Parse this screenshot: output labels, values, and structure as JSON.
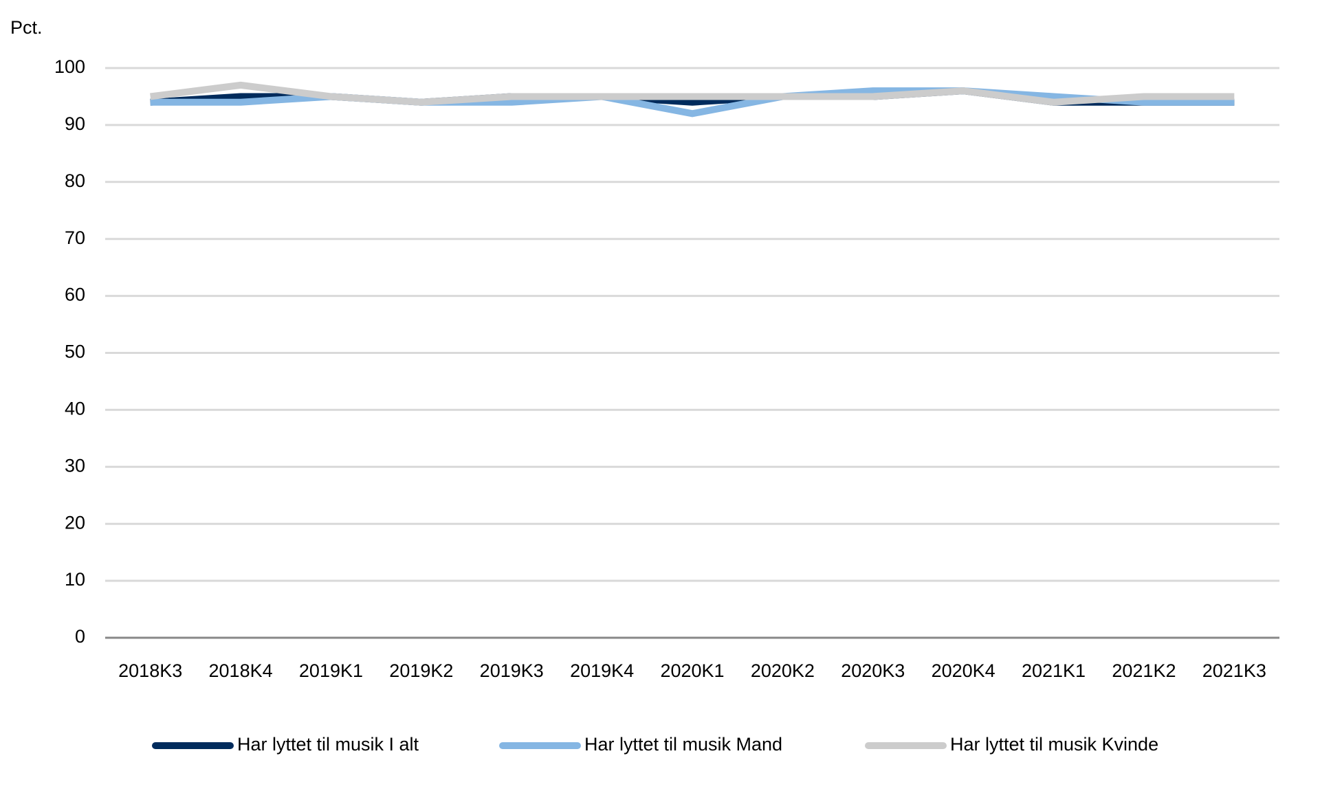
{
  "chart_data": {
    "type": "line",
    "y_unit_label": "Pct.",
    "categories": [
      "2018K3",
      "2018K4",
      "2019K1",
      "2019K2",
      "2019K3",
      "2019K4",
      "2020K1",
      "2020K2",
      "2020K3",
      "2020K4",
      "2021K1",
      "2021K2",
      "2021K3"
    ],
    "series": [
      {
        "name": "Har lyttet til musik I alt",
        "color": "#002b5c",
        "values": [
          94,
          95,
          95,
          94,
          95,
          95,
          94,
          95,
          95,
          96,
          94,
          94,
          94
        ]
      },
      {
        "name": "Har lyttet til musik Mand",
        "color": "#85b6e3",
        "values": [
          94,
          94,
          95,
          94,
          94,
          95,
          92,
          95,
          96,
          96,
          95,
          94,
          94
        ]
      },
      {
        "name": "Har lyttet til musik Kvinde",
        "color": "#cccccc",
        "values": [
          95,
          97,
          95,
          94,
          95,
          95,
          95,
          95,
          95,
          96,
          94,
          95,
          95
        ]
      }
    ],
    "ylim": [
      0,
      100
    ],
    "yticks": [
      0,
      10,
      20,
      30,
      40,
      50,
      60,
      70,
      80,
      90,
      100
    ],
    "grid": true,
    "legend": "bottom"
  }
}
